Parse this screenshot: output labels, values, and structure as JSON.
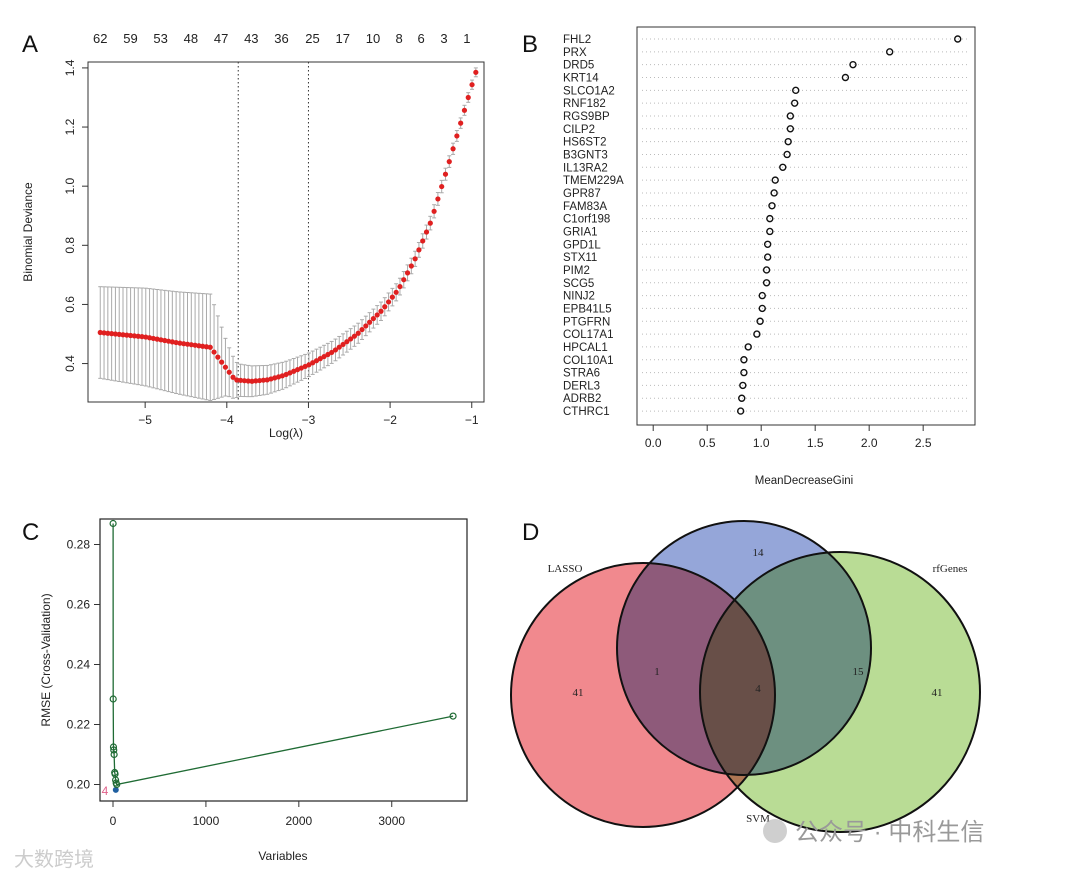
{
  "chart_data": [
    {
      "panel": "A",
      "type": "line",
      "xlabel": "Log(λ)",
      "ylabel": "Binomial Deviance",
      "xlim": [
        -5.7,
        -0.85
      ],
      "ylim": [
        0.27,
        1.42
      ],
      "xticks": [
        -5,
        -4,
        -3,
        -2,
        -1
      ],
      "yticks": [
        0.4,
        0.6,
        0.8,
        1.0,
        1.2,
        1.4
      ],
      "top_axis_labels": [
        "62",
        "59",
        "53",
        "48",
        "47",
        "43",
        "36",
        "25",
        "17",
        "10",
        "8",
        "6",
        "3",
        "1"
      ],
      "top_axis_positions": [
        -5.55,
        -5.18,
        -4.81,
        -4.44,
        -4.07,
        -3.7,
        -3.33,
        -2.95,
        -2.58,
        -2.21,
        -1.89,
        -1.62,
        -1.34,
        -1.06
      ],
      "vlines": [
        -3.86,
        -3.0
      ],
      "curve": [
        [
          -5.55,
          0.505
        ],
        [
          -5.0,
          0.49
        ],
        [
          -4.6,
          0.47
        ],
        [
          -4.2,
          0.455
        ],
        [
          -4.05,
          0.4
        ],
        [
          -3.9,
          0.345
        ],
        [
          -3.7,
          0.34
        ],
        [
          -3.5,
          0.345
        ],
        [
          -3.3,
          0.36
        ],
        [
          -3.0,
          0.395
        ],
        [
          -2.7,
          0.44
        ],
        [
          -2.4,
          0.5
        ],
        [
          -2.1,
          0.58
        ],
        [
          -1.9,
          0.65
        ],
        [
          -1.7,
          0.75
        ],
        [
          -1.5,
          0.88
        ],
        [
          -1.3,
          1.06
        ],
        [
          -1.15,
          1.2
        ],
        [
          -1.0,
          1.34
        ],
        [
          -0.95,
          1.385
        ]
      ],
      "error_halfwidth": [
        [
          -5.55,
          0.155
        ],
        [
          -4.2,
          0.18
        ],
        [
          -4.0,
          0.09
        ],
        [
          -3.86,
          0.055
        ],
        [
          -3.0,
          0.04
        ],
        [
          -2.0,
          0.03
        ],
        [
          -0.95,
          0.015
        ]
      ]
    },
    {
      "panel": "B",
      "type": "scatter",
      "xlabel": "MeanDecreaseGini",
      "xlim": [
        -0.15,
        2.98
      ],
      "xticks": [
        "0.0",
        "0.5",
        "1.0",
        "1.5",
        "2.0",
        "2.5"
      ],
      "categories": [
        "FHL2",
        "PRX",
        "DRD5",
        "KRT14",
        "SLCO1A2",
        "RNF182",
        "RGS9BP",
        "CILP2",
        "HS6ST2",
        "B3GNT3",
        "IL13RA2",
        "TMEM229A",
        "GPR87",
        "FAM83A",
        "C1orf198",
        "GRIA1",
        "GPD1L",
        "STX11",
        "PIM2",
        "SCG5",
        "NINJ2",
        "EPB41L5",
        "PTGFRN",
        "COL17A1",
        "HPCAL1",
        "COL10A1",
        "STRA6",
        "DERL3",
        "ADRB2",
        "CTHRC1"
      ],
      "values": [
        2.82,
        2.19,
        1.85,
        1.78,
        1.32,
        1.31,
        1.27,
        1.27,
        1.25,
        1.24,
        1.2,
        1.13,
        1.12,
        1.1,
        1.08,
        1.08,
        1.06,
        1.06,
        1.05,
        1.05,
        1.01,
        1.01,
        0.99,
        0.96,
        0.88,
        0.84,
        0.84,
        0.83,
        0.82,
        0.81
      ]
    },
    {
      "panel": "C",
      "type": "line",
      "xlabel": "Variables",
      "ylabel": "RMSE (Cross-Validation)",
      "xlim": [
        -140,
        3810
      ],
      "ylim": [
        0.1945,
        0.2885
      ],
      "xticks": [
        "0",
        "1000",
        "2000",
        "3000"
      ],
      "yticks": [
        "0.20",
        "0.22",
        "0.24",
        "0.26",
        "0.28"
      ],
      "points": [
        [
          1,
          0.287
        ],
        [
          2,
          0.2285
        ],
        [
          4,
          0.1982
        ],
        [
          5,
          0.2125
        ],
        [
          8,
          0.2115
        ],
        [
          12,
          0.21
        ],
        [
          18,
          0.204
        ],
        [
          22,
          0.2035
        ],
        [
          28,
          0.2015
        ],
        [
          34,
          0.2005
        ],
        [
          40,
          0.2
        ],
        [
          3660,
          0.2228
        ]
      ],
      "best_label": "4",
      "best_index": 2
    },
    {
      "panel": "D",
      "type": "venn",
      "sets": [
        "LASSO",
        "SVM",
        "rfGenes"
      ],
      "regions": {
        "LASSO_only": "41",
        "SVM_only": "14",
        "rfGenes_only": "41",
        "LASSO_SVM": "1",
        "SVM_rfGenes": "15",
        "all": "4"
      },
      "colors": {
        "LASSO": "#ee6b72",
        "SVM": "#7b90d0",
        "rfGenes": "#a7d37a"
      }
    }
  ],
  "panel_labels": [
    "A",
    "B",
    "C",
    "D"
  ],
  "watermarks": {
    "left": "大数跨境",
    "right": "公众号 · 中科生信"
  }
}
